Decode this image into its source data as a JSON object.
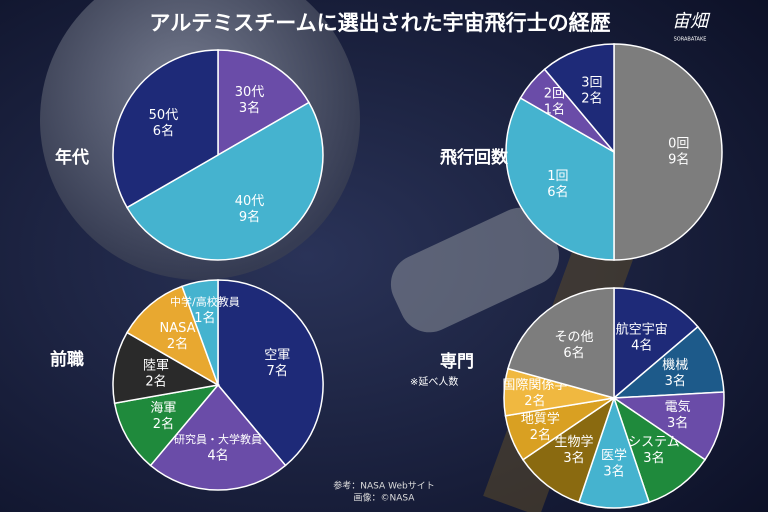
{
  "title": "アルテミスチームに選出された宇宙飛行士の経歴",
  "logo": "宙畑",
  "logo_sub": "SORABATAKE",
  "source": "参考：NASA Webサイト",
  "credit": "画像：©NASA",
  "chart_data": [
    {
      "type": "pie",
      "title": "年代",
      "categories": [
        "30代",
        "40代",
        "50代"
      ],
      "values": [
        3,
        9,
        6
      ],
      "value_labels": [
        "3名",
        "9名",
        "6名"
      ],
      "colors": [
        "#6a4ca8",
        "#45b3cf",
        "#1e2a78"
      ]
    },
    {
      "type": "pie",
      "title": "飛行回数",
      "categories": [
        "0回",
        "1回",
        "2回",
        "3回"
      ],
      "values": [
        9,
        6,
        1,
        2
      ],
      "value_labels": [
        "9名",
        "6名",
        "1名",
        "2名"
      ],
      "colors": [
        "#7d7d7d",
        "#45b3cf",
        "#6a4ca8",
        "#1e2a78"
      ]
    },
    {
      "type": "pie",
      "title": "前職",
      "categories": [
        "空軍",
        "研究員・大学教員",
        "海軍",
        "陸軍",
        "NASA",
        "中学/高校教員"
      ],
      "values": [
        7,
        4,
        2,
        2,
        2,
        1
      ],
      "value_labels": [
        "7名",
        "4名",
        "2名",
        "2名",
        "2名",
        "1名"
      ],
      "colors": [
        "#1e2a78",
        "#6a4ca8",
        "#1f8a3c",
        "#2a2a2a",
        "#e8a830",
        "#45b3cf"
      ]
    },
    {
      "type": "pie",
      "title": "専門",
      "note": "※延べ人数",
      "categories": [
        "航空宇宙",
        "機械",
        "電気",
        "システム",
        "医学",
        "生物学",
        "地質学",
        "国際関係学",
        "その他"
      ],
      "values": [
        4,
        3,
        3,
        3,
        3,
        3,
        2,
        2,
        6
      ],
      "value_labels": [
        "4名",
        "3名",
        "3名",
        "3名",
        "3名",
        "3名",
        "2名",
        "2名",
        "6名"
      ],
      "colors": [
        "#1e2a78",
        "#1d5a8a",
        "#6a4ca8",
        "#1f8a3c",
        "#45b3cf",
        "#8a6a10",
        "#d9a022",
        "#f0b840",
        "#7d7d7d"
      ]
    }
  ]
}
